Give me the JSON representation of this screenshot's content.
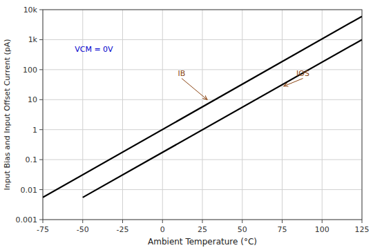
{
  "chart_data": {
    "type": "line",
    "log": "y",
    "grid": true,
    "xlabel": "Ambient Temperature (°C)",
    "ylabel": "Input Bias and Input Offset Current (pA)",
    "xlim": [
      -75,
      125
    ],
    "ylim": [
      0.001,
      10000
    ],
    "xticks": [
      -75,
      -50,
      -25,
      0,
      25,
      50,
      75,
      100,
      125
    ],
    "yticks": [
      0.001,
      0.01,
      0.1,
      1,
      10,
      100,
      {
        "value": 1000,
        "label": "1k"
      },
      {
        "value": 10000,
        "label": "10k"
      }
    ],
    "series": [
      {
        "x": [
          -75,
          125
        ],
        "values": [
          0.0055,
          6000
        ],
        "color": "#000000"
      },
      {
        "x": [
          -50,
          125
        ],
        "values": [
          0.0055,
          1000
        ],
        "color": "#000000"
      }
    ],
    "annotations": [
      {
        "text": "VCM = 0V",
        "x": -55,
        "y": 400,
        "color": "#0000CC"
      },
      {
        "text": "IB",
        "x": 12,
        "y": 60,
        "arrow_x": 28,
        "arrow_y": 10,
        "color": "#8B4513"
      },
      {
        "text": "IOS",
        "x": 88,
        "y": 60,
        "arrow_x": 76,
        "arrow_y": 28,
        "color": "#8B4513"
      }
    ]
  }
}
